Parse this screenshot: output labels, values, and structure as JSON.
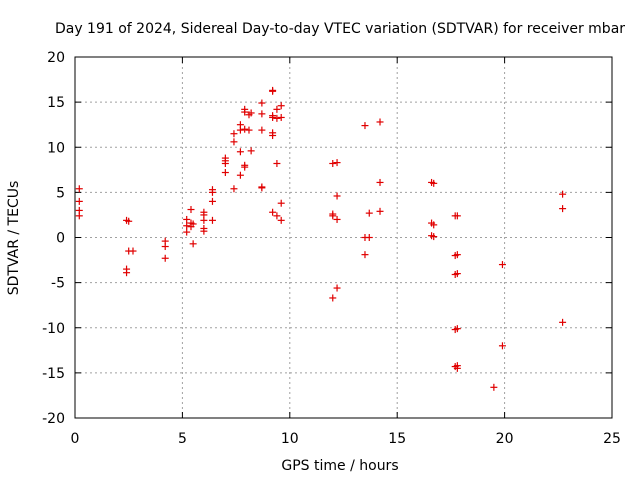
{
  "chart_data": {
    "type": "scatter",
    "title": "Day 191 of 2024, Sidereal Day-to-day VTEC variation (SDTVAR) for receiver mbar",
    "xlabel": "GPS time / hours",
    "ylabel": "SDTVAR / TECUs",
    "xlim": [
      0,
      25
    ],
    "ylim": [
      -20,
      20
    ],
    "x_ticks": [
      0,
      5,
      10,
      15,
      20,
      25
    ],
    "x_tick_labels": [
      "0",
      "5",
      "10",
      "15",
      "20",
      "25"
    ],
    "y_ticks": [
      -20,
      -15,
      -10,
      -5,
      0,
      5,
      10,
      15,
      20
    ],
    "y_tick_labels": [
      "-20",
      "-15",
      "-10",
      "-5",
      "0",
      "5",
      "10",
      "15",
      "20"
    ],
    "grid": true,
    "marker": "+",
    "color": "#e00000",
    "series": [
      {
        "name": "SDTVAR",
        "points": [
          [
            0.2,
            5.4
          ],
          [
            0.2,
            4.0
          ],
          [
            0.2,
            3.0
          ],
          [
            0.2,
            2.4
          ],
          [
            2.4,
            1.9
          ],
          [
            2.5,
            1.8
          ],
          [
            2.5,
            -1.5
          ],
          [
            2.7,
            -1.5
          ],
          [
            2.4,
            -3.5
          ],
          [
            2.4,
            -3.9
          ],
          [
            4.2,
            -0.4
          ],
          [
            4.2,
            -1.0
          ],
          [
            4.2,
            -2.3
          ],
          [
            5.2,
            2.0
          ],
          [
            5.2,
            1.3
          ],
          [
            5.2,
            0.6
          ],
          [
            5.4,
            3.1
          ],
          [
            5.4,
            1.6
          ],
          [
            5.4,
            1.2
          ],
          [
            5.5,
            1.5
          ],
          [
            5.5,
            -0.7
          ],
          [
            6.0,
            2.8
          ],
          [
            6.0,
            2.5
          ],
          [
            6.0,
            1.9
          ],
          [
            6.0,
            1.0
          ],
          [
            6.0,
            0.7
          ],
          [
            6.4,
            5.3
          ],
          [
            6.4,
            5.0
          ],
          [
            6.4,
            4.0
          ],
          [
            6.4,
            1.9
          ],
          [
            7.0,
            8.8
          ],
          [
            7.0,
            8.5
          ],
          [
            7.0,
            8.2
          ],
          [
            7.0,
            7.2
          ],
          [
            7.4,
            11.5
          ],
          [
            7.4,
            10.6
          ],
          [
            7.4,
            5.4
          ],
          [
            7.7,
            12.5
          ],
          [
            7.7,
            11.9
          ],
          [
            7.7,
            9.5
          ],
          [
            7.7,
            6.9
          ],
          [
            7.9,
            14.2
          ],
          [
            7.9,
            13.9
          ],
          [
            7.9,
            12.0
          ],
          [
            7.9,
            8.0
          ],
          [
            7.9,
            7.8
          ],
          [
            8.1,
            13.6
          ],
          [
            8.1,
            11.9
          ],
          [
            8.2,
            9.6
          ],
          [
            8.2,
            13.8
          ],
          [
            8.7,
            14.9
          ],
          [
            8.7,
            13.7
          ],
          [
            8.7,
            11.9
          ],
          [
            8.7,
            5.6
          ],
          [
            8.7,
            5.5
          ],
          [
            9.2,
            16.3
          ],
          [
            9.2,
            16.2
          ],
          [
            9.2,
            13.5
          ],
          [
            9.2,
            13.3
          ],
          [
            9.2,
            11.6
          ],
          [
            9.2,
            11.3
          ],
          [
            9.2,
            2.8
          ],
          [
            9.4,
            14.2
          ],
          [
            9.4,
            13.2
          ],
          [
            9.4,
            8.2
          ],
          [
            9.4,
            2.4
          ],
          [
            9.6,
            14.6
          ],
          [
            9.6,
            13.3
          ],
          [
            9.6,
            3.8
          ],
          [
            9.6,
            1.9
          ],
          [
            12.0,
            8.2
          ],
          [
            12.0,
            2.6
          ],
          [
            12.0,
            2.4
          ],
          [
            12.0,
            -6.7
          ],
          [
            12.2,
            8.3
          ],
          [
            12.2,
            4.6
          ],
          [
            12.2,
            2.0
          ],
          [
            12.2,
            -5.6
          ],
          [
            13.5,
            12.4
          ],
          [
            13.5,
            0.0
          ],
          [
            13.5,
            -1.9
          ],
          [
            13.7,
            2.7
          ],
          [
            13.7,
            0.0
          ],
          [
            14.2,
            12.8
          ],
          [
            14.2,
            6.1
          ],
          [
            14.2,
            2.9
          ],
          [
            16.6,
            6.1
          ],
          [
            16.7,
            6.0
          ],
          [
            16.6,
            1.6
          ],
          [
            16.7,
            1.4
          ],
          [
            16.6,
            0.2
          ],
          [
            16.7,
            0.1
          ],
          [
            17.7,
            2.4
          ],
          [
            17.8,
            2.4
          ],
          [
            17.7,
            -2.0
          ],
          [
            17.8,
            -1.9
          ],
          [
            17.7,
            -4.1
          ],
          [
            17.8,
            -4.0
          ],
          [
            17.7,
            -10.2
          ],
          [
            17.8,
            -10.1
          ],
          [
            17.7,
            -14.3
          ],
          [
            17.8,
            -14.2
          ],
          [
            17.8,
            -14.5
          ],
          [
            19.5,
            -16.6
          ],
          [
            19.9,
            -3.0
          ],
          [
            19.9,
            -12.0
          ],
          [
            22.7,
            4.8
          ],
          [
            22.7,
            3.2
          ],
          [
            22.7,
            -9.4
          ]
        ]
      }
    ]
  }
}
